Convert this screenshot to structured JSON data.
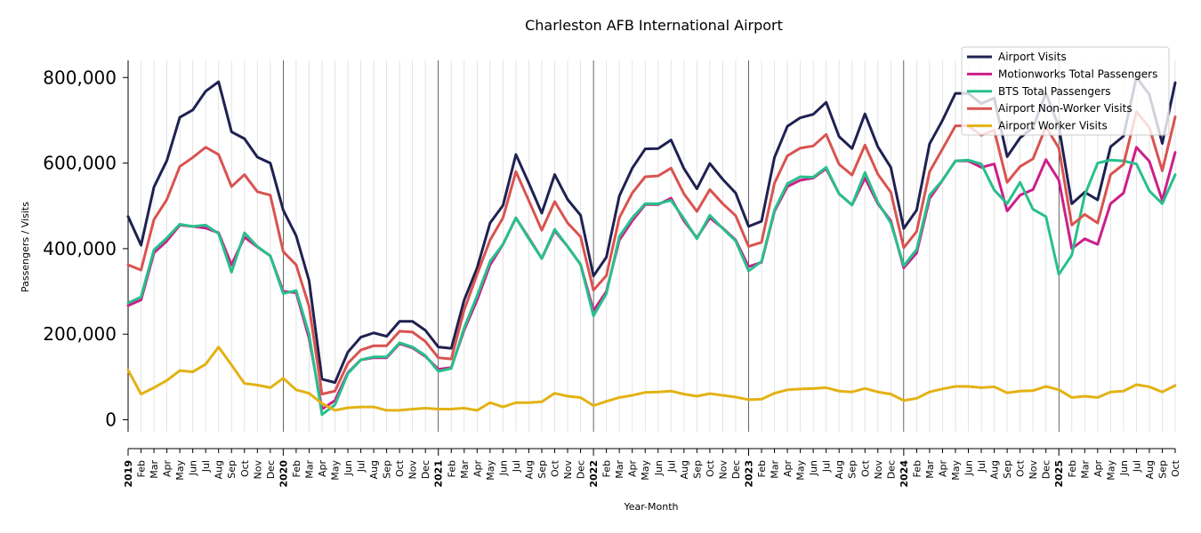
{
  "chart_data": {
    "type": "line",
    "title": "Charleston AFB International Airport",
    "xlabel": "Year-Month",
    "ylabel": "Passengers / Visits",
    "ylim": [
      -28000,
      840000
    ],
    "yticks": [
      0,
      200000,
      400000,
      600000,
      800000
    ],
    "ytick_labels": [
      "0",
      "200,000",
      "400,000",
      "600,000",
      "800,000"
    ],
    "grid": "vertical monthly gridlines",
    "legend_position": "top-right",
    "months": [
      "Jan",
      "Feb",
      "Mar",
      "Apr",
      "May",
      "Jun",
      "Jul",
      "Aug",
      "Sep",
      "Oct",
      "Nov",
      "Dec"
    ],
    "years": [
      "2019",
      "2020",
      "2021",
      "2022",
      "2023",
      "2024",
      "2025"
    ],
    "x": [
      "2019-01",
      "2019-02",
      "2019-03",
      "2019-04",
      "2019-05",
      "2019-06",
      "2019-07",
      "2019-08",
      "2019-09",
      "2019-10",
      "2019-11",
      "2019-12",
      "2020-01",
      "2020-02",
      "2020-03",
      "2020-04",
      "2020-05",
      "2020-06",
      "2020-07",
      "2020-08",
      "2020-09",
      "2020-10",
      "2020-11",
      "2020-12",
      "2021-01",
      "2021-02",
      "2021-03",
      "2021-04",
      "2021-05",
      "2021-06",
      "2021-07",
      "2021-08",
      "2021-09",
      "2021-10",
      "2021-11",
      "2021-12",
      "2022-01",
      "2022-02",
      "2022-03",
      "2022-04",
      "2022-05",
      "2022-06",
      "2022-07",
      "2022-08",
      "2022-09",
      "2022-10",
      "2022-11",
      "2022-12",
      "2023-01",
      "2023-02",
      "2023-03",
      "2023-04",
      "2023-05",
      "2023-06",
      "2023-07",
      "2023-08",
      "2023-09",
      "2023-10",
      "2023-11",
      "2023-12",
      "2024-01",
      "2024-02",
      "2024-03",
      "2024-04",
      "2024-05",
      "2024-06",
      "2024-07",
      "2024-08",
      "2024-09",
      "2024-10",
      "2024-11",
      "2024-12",
      "2025-01",
      "2025-02",
      "2025-03",
      "2025-04",
      "2025-05",
      "2025-06",
      "2025-07",
      "2025-08",
      "2025-09",
      "2025-10"
    ],
    "series": [
      {
        "name": "Airport Visits",
        "color": "#1f2151",
        "values": [
          475000,
          408000,
          544000,
          606000,
          707000,
          724000,
          768000,
          790000,
          673000,
          657000,
          614000,
          600000,
          490000,
          430000,
          325000,
          95000,
          87000,
          158000,
          193000,
          203000,
          195000,
          230000,
          230000,
          209000,
          170000,
          167000,
          280000,
          355000,
          460000,
          501000,
          620000,
          553000,
          483000,
          573000,
          515000,
          478000,
          336000,
          380000,
          523000,
          588000,
          633000,
          634000,
          654000,
          587000,
          540000,
          599000,
          562000,
          530000,
          452000,
          464000,
          613000,
          686000,
          706000,
          714000,
          742000,
          662000,
          634000,
          715000,
          638000,
          590000,
          447000,
          490000,
          645000,
          700000,
          763000,
          763000,
          739000,
          752000,
          615000,
          659000,
          683000,
          764000,
          685000,
          505000,
          532000,
          514000,
          638000,
          663000,
          801000,
          760000,
          646000,
          788000
        ]
      },
      {
        "name": "Motionworks Total Passengers",
        "color": "#cc1f8a",
        "values": [
          267000,
          280000,
          390000,
          418000,
          455000,
          452000,
          448000,
          437000,
          362000,
          427000,
          404000,
          383000,
          300000,
          297000,
          190000,
          25000,
          45000,
          110000,
          140000,
          145000,
          145000,
          178000,
          168000,
          148000,
          118000,
          122000,
          210000,
          280000,
          362000,
          410000,
          472000,
          425000,
          377000,
          442000,
          405000,
          363000,
          255000,
          300000,
          420000,
          465000,
          503000,
          503000,
          518000,
          465000,
          425000,
          472000,
          448000,
          420000,
          358000,
          368000,
          487000,
          545000,
          560000,
          565000,
          587000,
          528000,
          502000,
          565000,
          505000,
          465000,
          355000,
          390000,
          517000,
          560000,
          605000,
          605000,
          590000,
          598000,
          488000,
          525000,
          538000,
          608000,
          560000,
          400000,
          423000,
          410000,
          505000,
          530000,
          637000,
          604000,
          513000,
          625000
        ]
      },
      {
        "name": "BTS Total Passengers",
        "color": "#27c08c",
        "values": [
          273000,
          287000,
          397000,
          425000,
          457000,
          452000,
          455000,
          435000,
          345000,
          437000,
          405000,
          383000,
          295000,
          302000,
          200000,
          12000,
          35000,
          108000,
          140000,
          147000,
          147000,
          180000,
          170000,
          150000,
          113000,
          120000,
          215000,
          290000,
          370000,
          410000,
          472000,
          423000,
          377000,
          445000,
          405000,
          363000,
          243000,
          295000,
          428000,
          472000,
          505000,
          505000,
          513000,
          470000,
          423000,
          478000,
          447000,
          418000,
          348000,
          370000,
          490000,
          552000,
          568000,
          567000,
          590000,
          528000,
          502000,
          578000,
          508000,
          460000,
          360000,
          398000,
          525000,
          560000,
          605000,
          607000,
          598000,
          537000,
          505000,
          555000,
          492000,
          475000,
          340000,
          385000,
          525000,
          600000,
          607000,
          605000,
          598000,
          535000,
          505000,
          573000
        ]
      },
      {
        "name": "Airport Non-Worker Visits",
        "color": "#d95350",
        "values": [
          362000,
          350000,
          468000,
          515000,
          592000,
          613000,
          637000,
          620000,
          545000,
          573000,
          533000,
          525000,
          393000,
          362000,
          265000,
          60000,
          67000,
          132000,
          163000,
          173000,
          173000,
          207000,
          205000,
          183000,
          145000,
          142000,
          257000,
          340000,
          420000,
          472000,
          580000,
          512000,
          443000,
          510000,
          460000,
          428000,
          303000,
          337000,
          472000,
          530000,
          568000,
          570000,
          588000,
          528000,
          487000,
          538000,
          505000,
          477000,
          405000,
          415000,
          553000,
          617000,
          635000,
          640000,
          667000,
          597000,
          572000,
          642000,
          574000,
          532000,
          402000,
          440000,
          580000,
          633000,
          687000,
          687000,
          665000,
          677000,
          555000,
          592000,
          610000,
          685000,
          635000,
          455000,
          480000,
          460000,
          573000,
          597000,
          720000,
          683000,
          582000,
          708000
        ]
      },
      {
        "name": "Airport Worker Visits",
        "color": "#e3b214",
        "values": [
          116000,
          60000,
          75000,
          92000,
          115000,
          112000,
          130000,
          170000,
          128000,
          85000,
          81000,
          75000,
          97000,
          70000,
          62000,
          38000,
          22000,
          28000,
          30000,
          30000,
          22000,
          22000,
          25000,
          27000,
          25000,
          25000,
          27000,
          22000,
          40000,
          30000,
          40000,
          40000,
          42000,
          62000,
          55000,
          52000,
          33000,
          43000,
          52000,
          57000,
          64000,
          65000,
          67000,
          60000,
          55000,
          61000,
          57000,
          53000,
          47000,
          48000,
          62000,
          70000,
          72000,
          73000,
          75000,
          67000,
          65000,
          73000,
          65000,
          60000,
          45000,
          50000,
          65000,
          72000,
          78000,
          78000,
          75000,
          77000,
          63000,
          67000,
          68000,
          78000,
          70000,
          52000,
          55000,
          52000,
          65000,
          67000,
          82000,
          77000,
          65000,
          80000
        ]
      }
    ]
  }
}
